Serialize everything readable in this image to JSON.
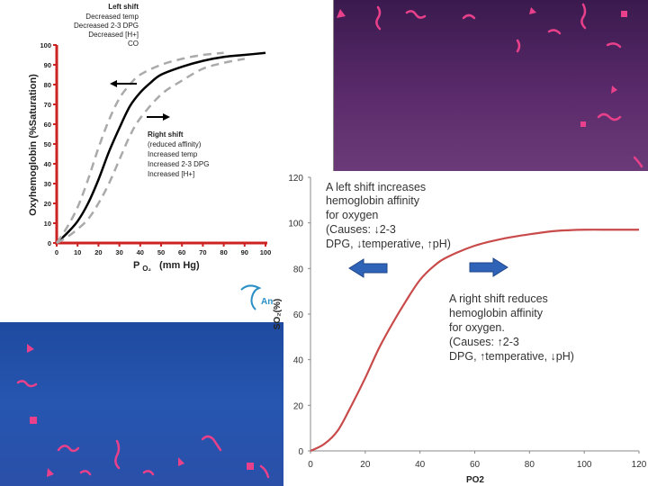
{
  "colors": {
    "curve1": "#000000",
    "dashed": "#aaaaaa",
    "axis1": "#cc2222",
    "curve2": "#c94a4a",
    "arrow": "#2f63b8"
  },
  "chart_data": [
    {
      "type": "line",
      "ylabel": "Oxyhemoglobin (%Saturation)",
      "xlabel_main": "P",
      "xlabel_sub": "O₂",
      "xlabel_unit": "(mm Hg)",
      "xlim": [
        0,
        100
      ],
      "ylim": [
        0,
        100
      ],
      "x_ticks": [
        0,
        10,
        20,
        30,
        40,
        50,
        60,
        70,
        80,
        90,
        100
      ],
      "y_ticks": [
        0,
        10,
        20,
        30,
        40,
        50,
        60,
        70,
        80,
        90,
        100
      ],
      "series": [
        {
          "style": "solid",
          "x": [
            0,
            5,
            10,
            15,
            20,
            25,
            30,
            35,
            40,
            45,
            50,
            60,
            70,
            80,
            90,
            100
          ],
          "y": [
            0,
            5,
            11,
            20,
            32,
            46,
            58,
            69,
            76,
            81,
            85,
            89,
            92,
            94,
            95,
            96
          ]
        },
        {
          "style": "dashed-left",
          "x": [
            0,
            5,
            10,
            15,
            20,
            25,
            30,
            35,
            40,
            50,
            60,
            70,
            80
          ],
          "y": [
            0,
            8,
            18,
            32,
            48,
            62,
            73,
            80,
            85,
            90,
            93,
            95,
            96
          ]
        },
        {
          "style": "dashed-right",
          "x": [
            0,
            5,
            10,
            15,
            20,
            25,
            30,
            35,
            40,
            50,
            60,
            70,
            80,
            90
          ],
          "y": [
            0,
            3,
            7,
            12,
            20,
            30,
            42,
            54,
            63,
            75,
            82,
            88,
            91,
            93
          ]
        }
      ],
      "left_shift": {
        "title": "Left shift",
        "lines": [
          "Decreased temp",
          "Decreased 2-3 DPG",
          "Decreased [H+]",
          "CO"
        ]
      },
      "right_shift": {
        "title": "Right shift",
        "lines": [
          "(reduced affinity)",
          "Increased temp",
          "Increased 2-3 DPG",
          "Increased [H+]"
        ]
      },
      "logo_text": "An"
    },
    {
      "type": "line",
      "xlabel": "PO2",
      "ylabel": "SO₂(%)",
      "xlim": [
        0,
        120
      ],
      "ylim": [
        0,
        120
      ],
      "x_ticks": [
        0,
        20,
        40,
        60,
        80,
        100,
        120
      ],
      "y_ticks": [
        0,
        20,
        40,
        60,
        80,
        100,
        120
      ],
      "series": [
        {
          "x": [
            0,
            5,
            10,
            15,
            20,
            25,
            30,
            35,
            40,
            45,
            50,
            60,
            70,
            80,
            90,
            100,
            110,
            120
          ],
          "y": [
            0,
            3,
            9,
            20,
            32,
            45,
            56,
            66,
            75,
            81,
            85,
            90,
            93,
            95,
            96.5,
            97,
            97,
            97
          ]
        }
      ],
      "annotations": {
        "left": [
          "A left shift increases",
          "hemoglobin affinity",
          "for oxygen",
          "(Causes: ↓2-3",
          "DPG, ↓temperative, ↑pH)"
        ],
        "right": [
          "A right shift reduces",
          "hemoglobin affinity",
          "for oxygen.",
          "(Causes: ↑2-3",
          "DPG, ↑temperative, ↓pH)"
        ]
      }
    }
  ]
}
